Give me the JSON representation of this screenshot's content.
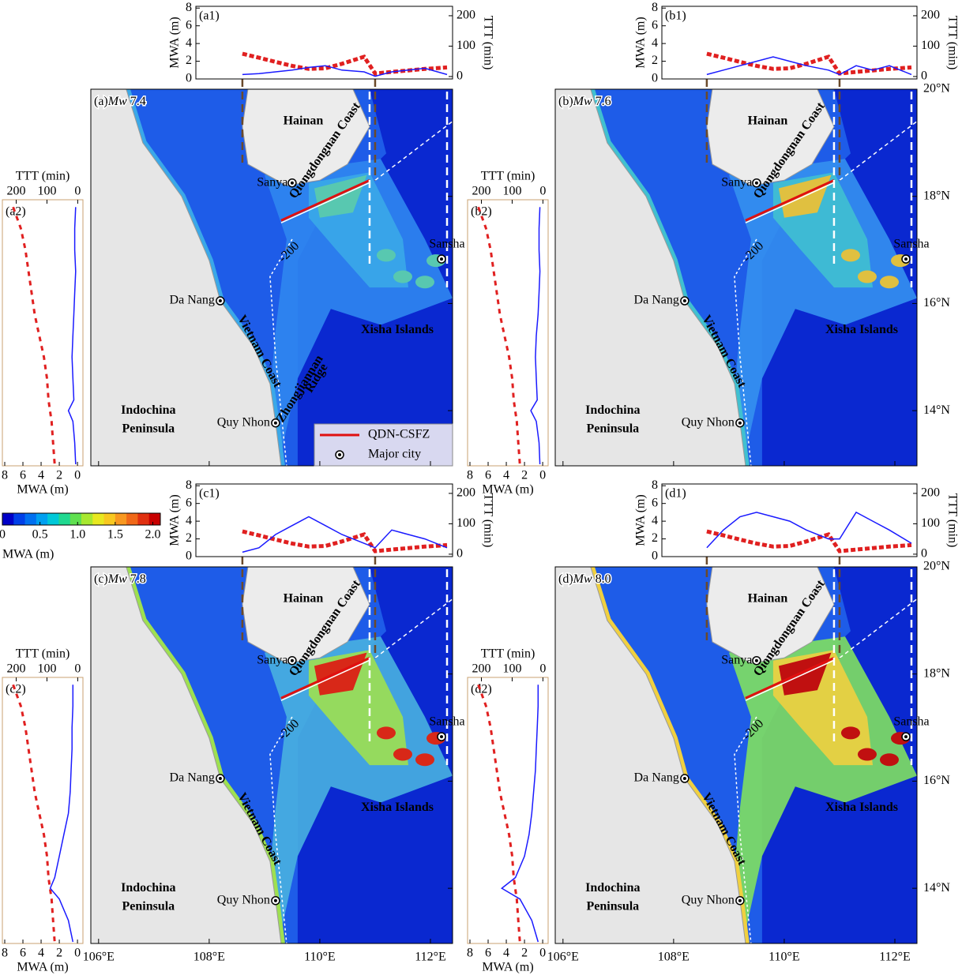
{
  "chart_data": {
    "type": "tsunami-panels",
    "map": {
      "xlim": [
        105.86,
        112.4
      ],
      "ylim": [
        12.97,
        20
      ],
      "xticks": [
        {
          "value": 106,
          "label": "106°E"
        },
        {
          "value": 108,
          "label": "108°E"
        },
        {
          "value": 110,
          "label": "110°E"
        },
        {
          "value": 112,
          "label": "112°E"
        }
      ],
      "yticks": [
        {
          "value": 14,
          "label": "14°N"
        },
        {
          "value": 16,
          "label": "16°N"
        },
        {
          "value": 18,
          "label": "18°N"
        },
        {
          "value": 20,
          "label": "20°N"
        }
      ]
    },
    "map_labels": {
      "hainan": "Hainan",
      "qiongdongnan": "Qiongdongnan Coast",
      "sanya": "Sanya",
      "sansha": "Sansha",
      "da_nang": "Da Nang",
      "vietnam_coast": "Vietnam Coast",
      "xisha": "Xisha Islands",
      "indochina_1": "Indochina",
      "indochina_2": "Peninsula",
      "quy_nhon": "Quy Nhon",
      "contour": "-200"
    },
    "extra_labels": {
      "ridge_1": "Zhongjiannan",
      "ridge_2": "Ridge",
      "legend_fault": "QDN-CSFZ",
      "legend_city": "Major city"
    },
    "top_inset": {
      "mwa_title": "MWA (m)",
      "ttt_title": "TTT (min)",
      "mwa_lim": [
        0,
        8.2
      ],
      "ttt_lim": [
        -8,
        231
      ],
      "mwa_ticks": [
        0,
        2,
        4,
        6,
        8
      ],
      "ttt_ticks": [
        0,
        100,
        200
      ],
      "x": [
        108.6,
        108.9,
        109.2,
        109.5,
        109.8,
        110.1,
        110.4,
        110.8,
        111.0,
        111.3,
        111.6,
        111.9,
        112.3
      ]
    },
    "side_inset": {
      "mwa_title": "MWA (m)",
      "ttt_title": "TTT (min)",
      "mwa_lim": [
        -0.6,
        8.26
      ],
      "ttt_lim": [
        -17,
        245
      ],
      "mwa_ticks": [
        8,
        6,
        4,
        2,
        0
      ],
      "ttt_ticks": [
        200,
        100,
        0
      ],
      "lat": [
        17.8,
        17.4,
        17.0,
        16.6,
        16.2,
        15.8,
        15.4,
        15.0,
        14.6,
        14.2,
        14.0,
        13.8,
        13.4,
        13.0
      ]
    },
    "colorbar": {
      "label": "MWA (m)",
      "lim": [
        0,
        2.1
      ],
      "ticks": [
        0,
        0.5,
        {
          "value": 1,
          "label": "1.0"
        },
        1.5,
        {
          "value": 2,
          "label": "2.0"
        }
      ],
      "colors": [
        "#0000c8",
        "#0040e8",
        "#0070f0",
        "#00a0f0",
        "#00c8d8",
        "#20d890",
        "#60e050",
        "#a8e830",
        "#e8e820",
        "#f8c820",
        "#f89820",
        "#f06818",
        "#e03010",
        "#c80000"
      ]
    },
    "panels": [
      {
        "label": "(a)",
        "mw": "Mw",
        "magnitude": "7.4",
        "top_label": "(a1)",
        "side_label": "(a2)",
        "plume_colors": [
          "#2f86f0",
          "#3aa8e8",
          "#58c8b0"
        ],
        "top_mwa": [
          0.5,
          0.6,
          0.8,
          1.0,
          1.3,
          1.5,
          1.0,
          0.8,
          0.3,
          0.8,
          1.0,
          1.2,
          0.5
        ],
        "top_ttt": [
          75,
          62,
          48,
          35,
          25,
          27,
          42,
          65,
          10,
          15,
          20,
          25,
          30
        ],
        "side_mwa": [
          0.2,
          0.3,
          0.3,
          0.2,
          0.3,
          0.4,
          0.5,
          0.6,
          0.5,
          0.4,
          1.0,
          0.5,
          0.3,
          0.2
        ],
        "side_ttt": [
          210,
          185,
          170,
          160,
          150,
          140,
          125,
          110,
          100,
          95,
          90,
          85,
          80,
          75
        ]
      },
      {
        "label": "(b)",
        "mw": "Mw",
        "magnitude": "7.6",
        "top_label": "(b1)",
        "side_label": "(b2)",
        "plume_colors": [
          "#3490f0",
          "#40c0d0",
          "#e0c040"
        ],
        "top_mwa": [
          0.5,
          1.0,
          1.5,
          2.0,
          2.5,
          2.0,
          1.5,
          1.0,
          0.5,
          1.5,
          1.0,
          1.5,
          0.5
        ],
        "top_ttt": [
          75,
          62,
          48,
          35,
          25,
          27,
          42,
          65,
          10,
          15,
          20,
          25,
          30
        ],
        "side_mwa": [
          0.3,
          0.4,
          0.4,
          0.3,
          0.4,
          0.5,
          0.7,
          0.8,
          0.7,
          0.6,
          1.3,
          0.7,
          0.4,
          0.3
        ],
        "side_ttt": [
          210,
          185,
          170,
          160,
          150,
          140,
          125,
          110,
          100,
          95,
          90,
          85,
          80,
          75
        ]
      },
      {
        "label": "(c)",
        "mw": "Mw",
        "magnitude": "7.8",
        "top_label": "(c1)",
        "side_label": "(c2)",
        "plume_colors": [
          "#48b0e0",
          "#9ee050",
          "#d82818"
        ],
        "top_mwa": [
          0.5,
          1.0,
          2.5,
          3.5,
          4.5,
          3.5,
          2.5,
          1.5,
          1.0,
          3.0,
          2.5,
          2.0,
          1.0
        ],
        "top_ttt": [
          75,
          62,
          48,
          35,
          25,
          27,
          42,
          65,
          10,
          15,
          20,
          25,
          30
        ],
        "side_mwa": [
          0.5,
          0.5,
          0.6,
          0.6,
          0.7,
          0.8,
          1.0,
          1.5,
          2.0,
          2.5,
          3.0,
          2.0,
          1.0,
          0.5
        ],
        "side_ttt": [
          210,
          185,
          170,
          160,
          150,
          140,
          125,
          110,
          100,
          95,
          90,
          85,
          80,
          75
        ]
      },
      {
        "label": "(d)",
        "mw": "Mw",
        "magnitude": "8.0",
        "top_label": "(d1)",
        "side_label": "(d2)",
        "plume_colors": [
          "#80e060",
          "#f0d040",
          "#c01010"
        ],
        "top_mwa": [
          1.0,
          3.0,
          4.5,
          5.0,
          4.5,
          4.0,
          3.0,
          2.0,
          2.0,
          5.0,
          4.0,
          3.0,
          1.5
        ],
        "top_ttt": [
          75,
          62,
          48,
          35,
          25,
          27,
          42,
          65,
          10,
          15,
          20,
          25,
          30
        ],
        "side_mwa": [
          0.5,
          0.5,
          0.6,
          0.7,
          0.8,
          1.0,
          1.2,
          1.5,
          2.0,
          3.0,
          4.5,
          2.5,
          1.2,
          0.5
        ],
        "side_ttt": [
          210,
          185,
          170,
          160,
          150,
          140,
          125,
          110,
          100,
          95,
          90,
          85,
          80,
          75
        ]
      }
    ]
  }
}
